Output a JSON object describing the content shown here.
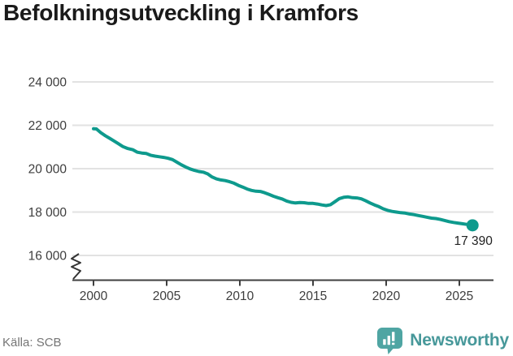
{
  "header": {
    "title": "Befolkningsutveckling i Kramfors"
  },
  "footer": {
    "source_label": "Källa: SCB",
    "brand_name": "Newsworthy"
  },
  "colors": {
    "line": "#0e9a8d",
    "grid": "#e2e2e2",
    "axis": "#3f3f3f",
    "tick_label": "#3d3d3d",
    "title": "#1a1a1a",
    "source_text": "#757575",
    "brand_icon": "#4fa5a3",
    "brand_text": "#47989a",
    "endpoint_label": "#222222"
  },
  "chart_data": {
    "type": "line",
    "title": "Befolkningsutveckling i Kramfors",
    "xlabel": "",
    "ylabel": "",
    "grid": "horizontal",
    "legend": "none",
    "axis_break_bottom_left": true,
    "x_ticks": [
      2000,
      2005,
      2010,
      2015,
      2020,
      2025
    ],
    "x_tick_labels": [
      "2000",
      "2005",
      "2010",
      "2015",
      "2020",
      "2025"
    ],
    "y_ticks": [
      16000,
      18000,
      20000,
      22000,
      24000
    ],
    "y_tick_labels": [
      "16 000",
      "18 000",
      "20 000",
      "22 000",
      "24 000"
    ],
    "xlim": [
      1998.6,
      2027.3
    ],
    "ylim": [
      15000,
      24000
    ],
    "source": "SCB",
    "endpoint": {
      "year": 2025.9,
      "value": 17390,
      "label": "17 390"
    },
    "points": [
      [
        2000.0,
        21840
      ],
      [
        2000.2,
        21830
      ],
      [
        2000.5,
        21660
      ],
      [
        2000.8,
        21520
      ],
      [
        2001.1,
        21400
      ],
      [
        2001.4,
        21280
      ],
      [
        2001.7,
        21150
      ],
      [
        2002.0,
        21020
      ],
      [
        2002.3,
        20940
      ],
      [
        2002.7,
        20870
      ],
      [
        2003.0,
        20760
      ],
      [
        2003.3,
        20720
      ],
      [
        2003.6,
        20700
      ],
      [
        2003.9,
        20620
      ],
      [
        2004.2,
        20580
      ],
      [
        2004.5,
        20550
      ],
      [
        2004.8,
        20520
      ],
      [
        2005.1,
        20480
      ],
      [
        2005.4,
        20420
      ],
      [
        2005.7,
        20300
      ],
      [
        2006.0,
        20180
      ],
      [
        2006.3,
        20080
      ],
      [
        2006.6,
        19990
      ],
      [
        2006.9,
        19920
      ],
      [
        2007.2,
        19870
      ],
      [
        2007.5,
        19840
      ],
      [
        2007.8,
        19760
      ],
      [
        2008.1,
        19620
      ],
      [
        2008.4,
        19530
      ],
      [
        2008.7,
        19480
      ],
      [
        2009.0,
        19450
      ],
      [
        2009.3,
        19400
      ],
      [
        2009.6,
        19330
      ],
      [
        2009.9,
        19230
      ],
      [
        2010.2,
        19150
      ],
      [
        2010.5,
        19060
      ],
      [
        2010.8,
        19000
      ],
      [
        2011.1,
        18960
      ],
      [
        2011.4,
        18950
      ],
      [
        2011.7,
        18890
      ],
      [
        2012.0,
        18810
      ],
      [
        2012.3,
        18730
      ],
      [
        2012.6,
        18660
      ],
      [
        2012.9,
        18600
      ],
      [
        2013.2,
        18510
      ],
      [
        2013.5,
        18450
      ],
      [
        2013.8,
        18420
      ],
      [
        2014.1,
        18440
      ],
      [
        2014.4,
        18430
      ],
      [
        2014.7,
        18400
      ],
      [
        2015.0,
        18400
      ],
      [
        2015.3,
        18370
      ],
      [
        2015.6,
        18330
      ],
      [
        2015.9,
        18300
      ],
      [
        2016.2,
        18340
      ],
      [
        2016.5,
        18480
      ],
      [
        2016.8,
        18620
      ],
      [
        2017.1,
        18680
      ],
      [
        2017.4,
        18700
      ],
      [
        2017.7,
        18660
      ],
      [
        2018.0,
        18650
      ],
      [
        2018.3,
        18610
      ],
      [
        2018.6,
        18520
      ],
      [
        2018.9,
        18420
      ],
      [
        2019.2,
        18330
      ],
      [
        2019.5,
        18250
      ],
      [
        2019.8,
        18150
      ],
      [
        2020.1,
        18080
      ],
      [
        2020.4,
        18030
      ],
      [
        2020.7,
        18000
      ],
      [
        2021.0,
        17970
      ],
      [
        2021.3,
        17950
      ],
      [
        2021.6,
        17910
      ],
      [
        2021.9,
        17880
      ],
      [
        2022.2,
        17840
      ],
      [
        2022.5,
        17800
      ],
      [
        2022.8,
        17760
      ],
      [
        2023.1,
        17720
      ],
      [
        2023.4,
        17700
      ],
      [
        2023.7,
        17660
      ],
      [
        2024.0,
        17610
      ],
      [
        2024.3,
        17560
      ],
      [
        2024.6,
        17520
      ],
      [
        2024.9,
        17490
      ],
      [
        2025.2,
        17460
      ],
      [
        2025.5,
        17430
      ],
      [
        2025.9,
        17390
      ]
    ]
  }
}
